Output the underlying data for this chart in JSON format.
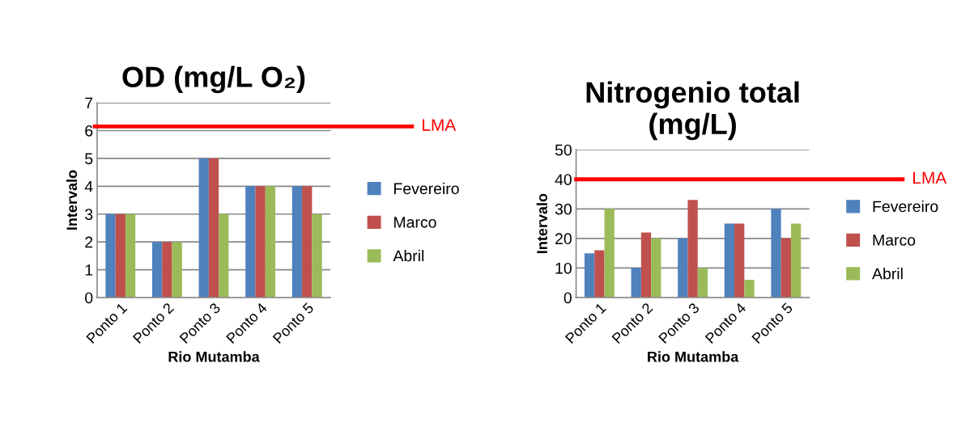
{
  "chart_data": [
    {
      "type": "bar",
      "title": "OD (mg/L O₂)",
      "xlabel": "Rio Mutamba",
      "ylabel": "Intervalo",
      "categories": [
        "Ponto 1",
        "Ponto 2",
        "Ponto 3",
        "Ponto 4",
        "Ponto 5"
      ],
      "series": [
        {
          "name": "Fevereiro",
          "color": "#4f81bd",
          "values": [
            3,
            2,
            5,
            4,
            4
          ]
        },
        {
          "name": "Marco",
          "color": "#c0504d",
          "values": [
            3,
            2,
            5,
            4,
            4
          ]
        },
        {
          "name": "Abril",
          "color": "#9bbb59",
          "values": [
            3,
            2,
            3,
            4,
            3
          ]
        }
      ],
      "ylim": [
        0,
        7
      ],
      "yticks": [
        0,
        1,
        2,
        3,
        4,
        5,
        6,
        7
      ],
      "grid": "y",
      "legend": "right",
      "ref_lines": [
        {
          "axis": "y",
          "value": 6.15,
          "label": "LMA",
          "color": "#ff0000"
        }
      ]
    },
    {
      "type": "bar",
      "title": "Nitrogenio total\n(mg/L)",
      "xlabel": "Rio Mutamba",
      "ylabel": "Intervalo",
      "categories": [
        "Ponto 1",
        "Ponto 2",
        "Ponto 3",
        "Ponto 4",
        "Ponto 5"
      ],
      "series": [
        {
          "name": "Fevereiro",
          "color": "#4f81bd",
          "values": [
            15,
            10,
            20,
            25,
            30
          ]
        },
        {
          "name": "Marco",
          "color": "#c0504d",
          "values": [
            16,
            22,
            33,
            25,
            20
          ]
        },
        {
          "name": "Abril",
          "color": "#9bbb59",
          "values": [
            30,
            20,
            10,
            6,
            25
          ]
        }
      ],
      "ylim": [
        0,
        50
      ],
      "yticks": [
        0,
        10,
        20,
        30,
        40,
        50
      ],
      "grid": "y",
      "legend": "right",
      "ref_lines": [
        {
          "axis": "y",
          "value": 40,
          "label": "LMA",
          "color": "#ff0000"
        }
      ]
    }
  ]
}
